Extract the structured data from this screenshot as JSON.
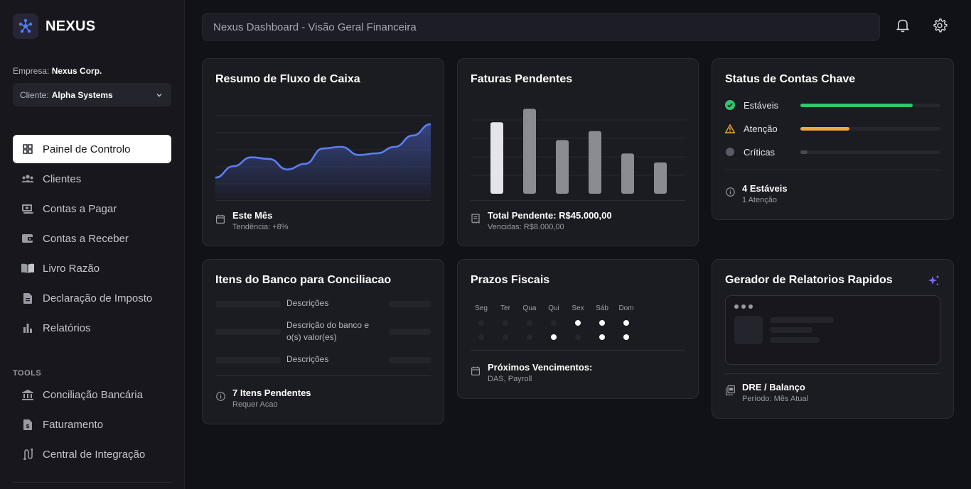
{
  "brand": {
    "name": "NEXUS",
    "logo_icon": "network-nodes-icon",
    "accent": "#4f7cf5"
  },
  "company": {
    "label": "Empresa:",
    "value": "Nexus Corp."
  },
  "client": {
    "label": "Cliente:",
    "value": "Alpha Systems"
  },
  "nav": [
    {
      "label": "Painel de Controlo",
      "icon": "grid-icon",
      "active": true
    },
    {
      "label": "Clientes",
      "icon": "users-icon"
    },
    {
      "label": "Contas a Pagar",
      "icon": "bill-icon"
    },
    {
      "label": "Contas a Receber",
      "icon": "wallet-icon"
    },
    {
      "label": "Livro Razão",
      "icon": "book-icon"
    },
    {
      "label": "Declaração de Imposto",
      "icon": "document-icon"
    },
    {
      "label": "Relatórios",
      "icon": "bar-chart-icon"
    }
  ],
  "tools": {
    "label": "TOOLS",
    "items": [
      {
        "label": "Conciliação Bancária",
        "icon": "bank-icon"
      },
      {
        "label": "Faturamento",
        "icon": "invoice-icon"
      },
      {
        "label": "Central de Integração",
        "icon": "integration-icon"
      }
    ]
  },
  "search": {
    "placeholder": "Nexus Dashboard - Visão Geral Financeira"
  },
  "cards": {
    "cashflow": {
      "title": "Resumo de Fluxo de Caixa",
      "foot_title": "Este Mês",
      "foot_sub": "Tendência: +8%",
      "line_color": "#5b7ff0"
    },
    "invoices": {
      "title": "Faturas Pendentes",
      "foot_title": "Total Pendente: R$45.000,00",
      "foot_sub": "Vencidas: R$8.000,00"
    },
    "accounts": {
      "title": "Status de Contas Chave",
      "rows": [
        {
          "label": "Estáveis",
          "icon": "check-circle-icon",
          "color": "#35c46a",
          "level": 0.8
        },
        {
          "label": "Atenção",
          "icon": "warning-icon",
          "color": "#f5a83a",
          "level": 0.35
        },
        {
          "label": "Críticas",
          "icon": "dot-icon",
          "color": "#4a4a55",
          "level": 0.05
        }
      ],
      "foot_title": "4 Estáveis",
      "foot_sub": "1 Atenção"
    },
    "bank": {
      "title": "Itens do Banco para Conciliacao",
      "rows": [
        "Descrições",
        "Descrição do banco e o(s) valor(es)",
        "Descrições"
      ],
      "foot_title": "7 Itens Pendentes",
      "foot_sub": "Requer Acao"
    },
    "tax": {
      "title": "Prazos Fiscais",
      "days": [
        "Seg",
        "Ter",
        "Qua",
        "Qui",
        "Sex",
        "Sáb",
        "Dom"
      ],
      "week1": [
        false,
        false,
        false,
        false,
        true,
        true,
        true
      ],
      "week2": [
        false,
        false,
        false,
        true,
        false,
        true,
        true
      ],
      "foot_title": "Próximos Vencimentos:",
      "foot_sub": "DAS, Payroll"
    },
    "reports": {
      "title": "Gerador de Relatorios Rapidos",
      "foot_title": "DRE / Balanço",
      "foot_sub": "Período: Mês Atual"
    }
  },
  "chart_data": [
    {
      "type": "area",
      "title": "Resumo de Fluxo de Caixa",
      "x": [
        0,
        1,
        2,
        3,
        4,
        5,
        6,
        7,
        8,
        9,
        10,
        11,
        12
      ],
      "values": [
        20,
        34,
        45,
        43,
        30,
        37,
        56,
        58,
        48,
        50,
        58,
        72,
        86
      ],
      "ylim": [
        0,
        100
      ],
      "grid": true
    },
    {
      "type": "bar",
      "title": "Faturas Pendentes",
      "categories": [
        "1",
        "2",
        "3",
        "4",
        "5",
        "6"
      ],
      "values": [
        80,
        95,
        60,
        70,
        45,
        35
      ],
      "ylim": [
        0,
        100
      ],
      "grid": true,
      "highlight_index": 0
    }
  ]
}
